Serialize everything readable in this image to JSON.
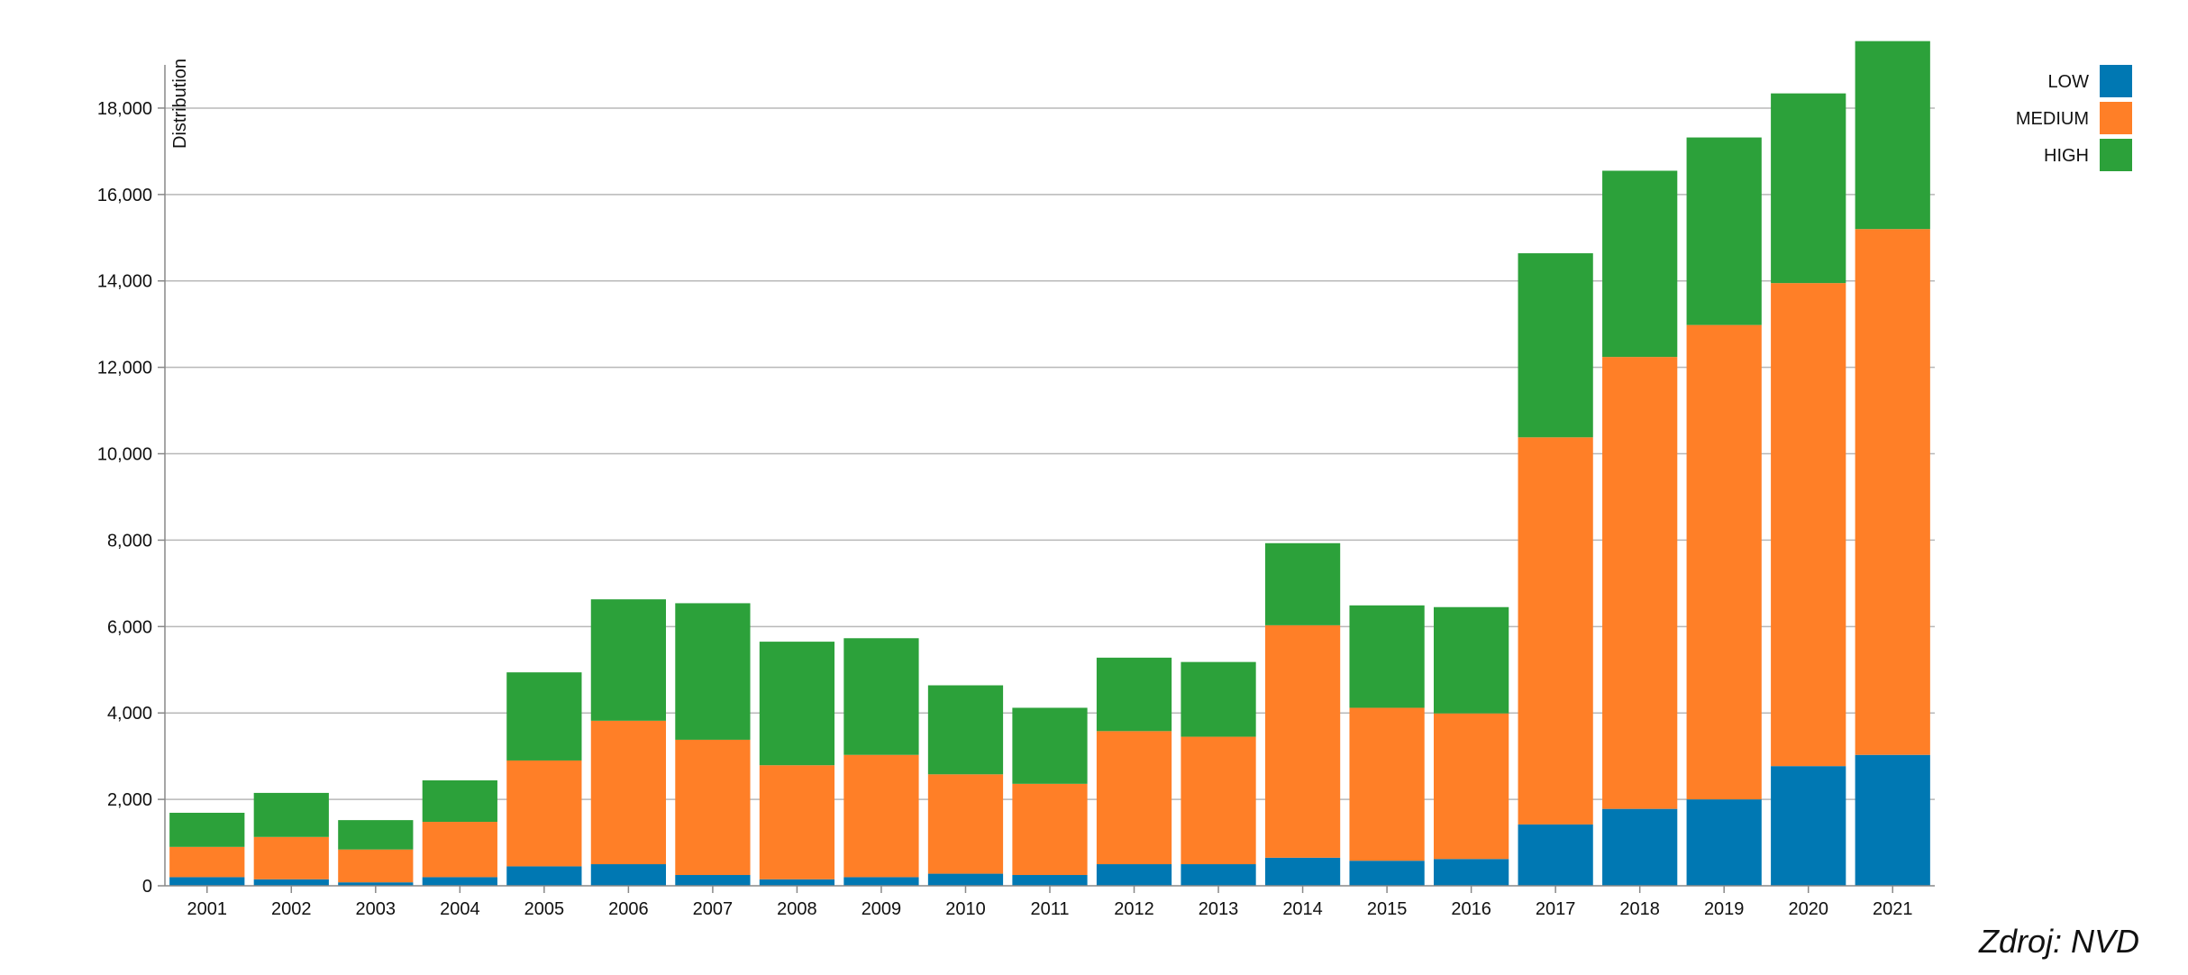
{
  "source": "Zdroj: NVD",
  "colors": {
    "LOW": "#0078b3",
    "MEDIUM": "#ff7f27",
    "HIGH": "#2ca13a",
    "grid": "#b8b8b8",
    "axis": "#888888"
  },
  "chart_data": {
    "type": "bar",
    "stacked": true,
    "title": "",
    "xlabel": "",
    "ylabel": "Distribution",
    "ylim": [
      0,
      19000
    ],
    "yticks": [
      0,
      2000,
      4000,
      6000,
      8000,
      10000,
      12000,
      14000,
      16000,
      18000
    ],
    "ytick_labels": [
      "0",
      "2,000",
      "4,000",
      "6,000",
      "8,000",
      "10,000",
      "12,000",
      "14,000",
      "16,000",
      "18,000"
    ],
    "grid": true,
    "legend_position": "top-right",
    "categories": [
      "2001",
      "2002",
      "2003",
      "2004",
      "2005",
      "2006",
      "2007",
      "2008",
      "2009",
      "2010",
      "2011",
      "2012",
      "2013",
      "2014",
      "2015",
      "2016",
      "2017",
      "2018",
      "2019",
      "2020",
      "2021"
    ],
    "series": [
      {
        "name": "LOW",
        "values": [
          200,
          150,
          80,
          200,
          450,
          500,
          250,
          150,
          200,
          280,
          250,
          500,
          500,
          650,
          580,
          620,
          1420,
          1780,
          2000,
          2770,
          3030
        ]
      },
      {
        "name": "MEDIUM",
        "values": [
          700,
          980,
          760,
          1280,
          2450,
          3320,
          3130,
          2640,
          2830,
          2300,
          2110,
          3080,
          2950,
          5380,
          3540,
          3370,
          8960,
          10460,
          10980,
          11180,
          12170
        ]
      },
      {
        "name": "HIGH",
        "values": [
          790,
          1020,
          680,
          960,
          2040,
          2810,
          3160,
          2860,
          2700,
          2060,
          1760,
          1700,
          1730,
          1900,
          2370,
          2460,
          4260,
          4310,
          4340,
          4390,
          4350
        ]
      }
    ]
  }
}
